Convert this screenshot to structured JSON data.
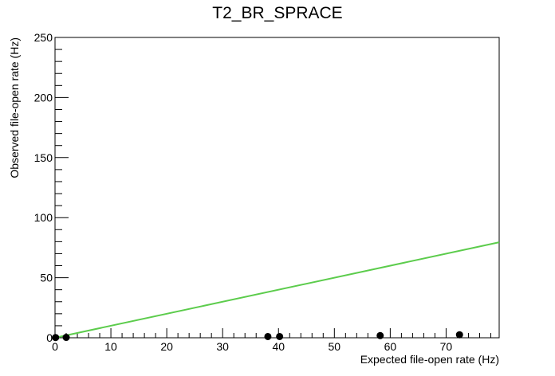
{
  "chart_data": {
    "type": "scatter",
    "title": "T2_BR_SPRACE",
    "xlabel": "Expected file-open rate (Hz)",
    "ylabel": "Observed file-open rate (Hz)",
    "xlim": [
      0,
      79.5
    ],
    "ylim": [
      0,
      250
    ],
    "x_ticks": [
      0,
      10,
      20,
      30,
      40,
      50,
      60,
      70
    ],
    "y_ticks": [
      0,
      50,
      100,
      150,
      200,
      250
    ],
    "grid": false,
    "legend": "none",
    "points": {
      "x": [
        0.1,
        2.0,
        38.1,
        40.2,
        58.2,
        72.4
      ],
      "y": [
        0.2,
        0.3,
        1.0,
        1.0,
        1.8,
        2.5
      ],
      "color": "#000000"
    },
    "reference_line": {
      "x": [
        0,
        79.5
      ],
      "y": [
        0,
        79.5
      ],
      "color": "#5ccc4c"
    }
  }
}
